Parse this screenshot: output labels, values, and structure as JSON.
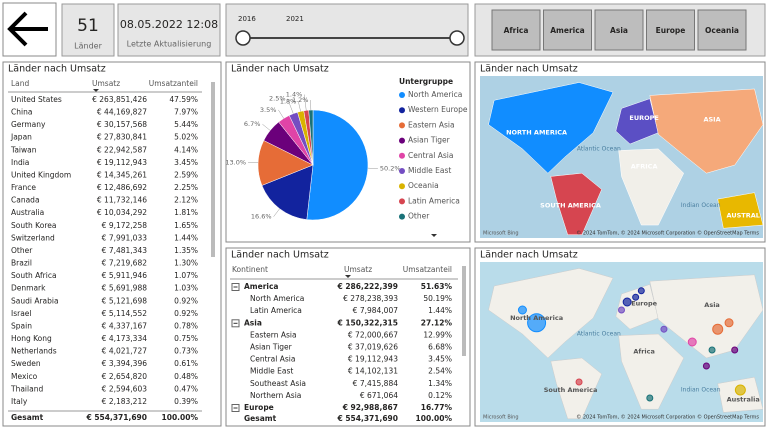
{
  "nav": {
    "count": "51",
    "count_label": "Länder",
    "date": "08.05.2022 12:08",
    "date_label": "Letzte Aktualisierung"
  },
  "slider": {
    "start": "2016",
    "end": "2021"
  },
  "buttons": [
    "Africa",
    "America",
    "Asia",
    "Europe",
    "Oceania"
  ],
  "country_table": {
    "title": "Länder nach Umsatz",
    "columns": [
      "Land",
      "Umsatz",
      "Umsatzanteil"
    ],
    "rows": [
      [
        "United States",
        "€ 263,851,426",
        "47.59%"
      ],
      [
        "China",
        "€ 44,169,827",
        "7.97%"
      ],
      [
        "Germany",
        "€ 30,157,568",
        "5.44%"
      ],
      [
        "Japan",
        "€ 27,830,841",
        "5.02%"
      ],
      [
        "Taiwan",
        "€ 22,942,587",
        "4.14%"
      ],
      [
        "India",
        "€ 19,112,943",
        "3.45%"
      ],
      [
        "United Kingdom",
        "€ 14,345,261",
        "2.59%"
      ],
      [
        "France",
        "€ 12,486,692",
        "2.25%"
      ],
      [
        "Canada",
        "€ 11,732,146",
        "2.12%"
      ],
      [
        "Australia",
        "€ 10,034,292",
        "1.81%"
      ],
      [
        "South Korea",
        "€ 9,172,258",
        "1.65%"
      ],
      [
        "Switzerland",
        "€ 7,991,033",
        "1.44%"
      ],
      [
        "Other",
        "€ 7,481,343",
        "1.35%"
      ],
      [
        "Brazil",
        "€ 7,219,682",
        "1.30%"
      ],
      [
        "South Africa",
        "€ 5,911,946",
        "1.07%"
      ],
      [
        "Denmark",
        "€ 5,691,988",
        "1.03%"
      ],
      [
        "Saudi Arabia",
        "€ 5,121,698",
        "0.92%"
      ],
      [
        "Israel",
        "€ 5,114,552",
        "0.92%"
      ],
      [
        "Spain",
        "€ 4,337,167",
        "0.78%"
      ],
      [
        "Hong Kong",
        "€ 4,173,334",
        "0.75%"
      ],
      [
        "Netherlands",
        "€ 4,021,727",
        "0.73%"
      ],
      [
        "Sweden",
        "€ 3,394,396",
        "0.61%"
      ],
      [
        "Mexico",
        "€ 2,654,820",
        "0.48%"
      ],
      [
        "Thailand",
        "€ 2,594,603",
        "0.47%"
      ],
      [
        "Italy",
        "€ 2,183,212",
        "0.39%"
      ]
    ],
    "total": [
      "Gesamt",
      "€ 554,371,690",
      "100.00%"
    ]
  },
  "chart_data": {
    "type": "pie",
    "title": "Länder nach Umsatz",
    "legend_title": "Untergruppe",
    "categories": [
      "North America",
      "Western Europe",
      "Eastern Asia",
      "Asian Tiger",
      "Central Asia",
      "Middle East",
      "Oceania",
      "Latin America",
      "Other"
    ],
    "values": [
      50.2,
      16.6,
      13.0,
      6.7,
      3.5,
      2.5,
      1.8,
      1.4,
      1.2
    ],
    "value_labels": [
      "50.2%",
      "16.6%",
      "13.0%",
      "6.7%",
      "3.5%",
      "2.5%",
      "1.8%",
      "1.4%",
      "1.2%"
    ],
    "colors": [
      "#118DFF",
      "#12239E",
      "#E66C37",
      "#6B007B",
      "#E044A7",
      "#744EC2",
      "#D9B300",
      "#D64550",
      "#197278"
    ]
  },
  "continent_table": {
    "title": "Länder nach Umsatz",
    "columns": [
      "Kontinent",
      "Umsatz",
      "Umsatzanteil"
    ],
    "rows": [
      {
        "level": 0,
        "cells": [
          "America",
          "€ 286,222,399",
          "51.63%"
        ]
      },
      {
        "level": 1,
        "cells": [
          "North America",
          "€ 278,238,393",
          "50.19%"
        ]
      },
      {
        "level": 1,
        "cells": [
          "Latin America",
          "€ 7,984,007",
          "1.44%"
        ]
      },
      {
        "level": 0,
        "cells": [
          "Asia",
          "€ 150,322,315",
          "27.12%"
        ]
      },
      {
        "level": 1,
        "cells": [
          "Eastern Asia",
          "€ 72,000,667",
          "12.99%"
        ]
      },
      {
        "level": 1,
        "cells": [
          "Asian Tiger",
          "€ 37,019,626",
          "6.68%"
        ]
      },
      {
        "level": 1,
        "cells": [
          "Central Asia",
          "€ 19,112,943",
          "3.45%"
        ]
      },
      {
        "level": 1,
        "cells": [
          "Middle East",
          "€ 14,102,131",
          "2.54%"
        ]
      },
      {
        "level": 1,
        "cells": [
          "Southeast Asia",
          "€ 7,415,884",
          "1.34%"
        ]
      },
      {
        "level": 1,
        "cells": [
          "Northern Asia",
          "€ 671,064",
          "0.12%"
        ]
      },
      {
        "level": 0,
        "cells": [
          "Europe",
          "€ 92,988,867",
          "16.77%"
        ]
      }
    ],
    "total": [
      "Gesamt",
      "€ 554,371,690",
      "100.00%"
    ]
  },
  "maps": [
    {
      "title": "Länder nach Umsatz",
      "labels": [
        "NORTH AMERICA",
        "Atlantic Ocean",
        "EUROPE",
        "ASIA",
        "AFRICA",
        "SOUTH AMERICA",
        "Indian Ocean",
        "AUSTRAL"
      ],
      "brand": "Microsoft Bing",
      "attribution": "© 2024 TomTom, © 2024 Microsoft Corporation © OpenStreetMap Terms"
    },
    {
      "title": "Länder nach Umsatz",
      "labels": [
        "North America",
        "Atlantic Ocean",
        "Europe",
        "Asia",
        "Africa",
        "South America",
        "Indian Ocean",
        "Australia"
      ],
      "brand": "Microsoft Bing",
      "attribution": "© 2024 TomTom, © 2024 Microsoft Corporation © OpenStreetMap Terms"
    }
  ]
}
